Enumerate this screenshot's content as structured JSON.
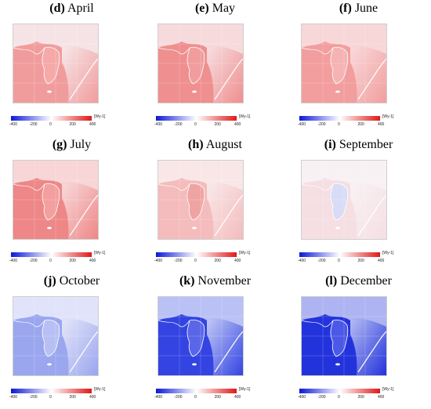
{
  "colorbar": {
    "ticks": [
      "-400",
      "-200",
      "0",
      "200",
      "400"
    ],
    "unit": "[Wy-1]",
    "colors": [
      "#0b18d6",
      "#ffffff",
      "#e01818"
    ]
  },
  "panels": [
    {
      "letter": "(d)",
      "name": "April",
      "land": "#f7f0f3",
      "sea": "#f19c9c",
      "accent": "#f6a9a9"
    },
    {
      "letter": "(e)",
      "name": "May",
      "land": "#f8e7ea",
      "sea": "#ef8f8f",
      "accent": "#f29d9d"
    },
    {
      "letter": "(f)",
      "name": "June",
      "land": "#f9e0e2",
      "sea": "#f29e9e",
      "accent": "#f5b3b3"
    },
    {
      "letter": "(g)",
      "name": "July",
      "land": "#f9e3e4",
      "sea": "#ee8787",
      "accent": "#f39f9f"
    },
    {
      "letter": "(h)",
      "name": "August",
      "land": "#f9eeef",
      "sea": "#f4bcbc",
      "accent": "#f0a3a3"
    },
    {
      "letter": "(i)",
      "name": "September",
      "land": "#f8f4f6",
      "sea": "#f5dfe3",
      "accent": "#d8dcf6"
    },
    {
      "letter": "(j)",
      "name": "October",
      "land": "#ecedfb",
      "sea": "#9aa6ee",
      "accent": "#b8c0f3"
    },
    {
      "letter": "(k)",
      "name": "November",
      "land": "#d2d7f8",
      "sea": "#3344e2",
      "accent": "#5a66e8"
    },
    {
      "letter": "(l)",
      "name": "December",
      "land": "#c5cbf5",
      "sea": "#2333dc",
      "accent": "#4b59e6"
    }
  ]
}
